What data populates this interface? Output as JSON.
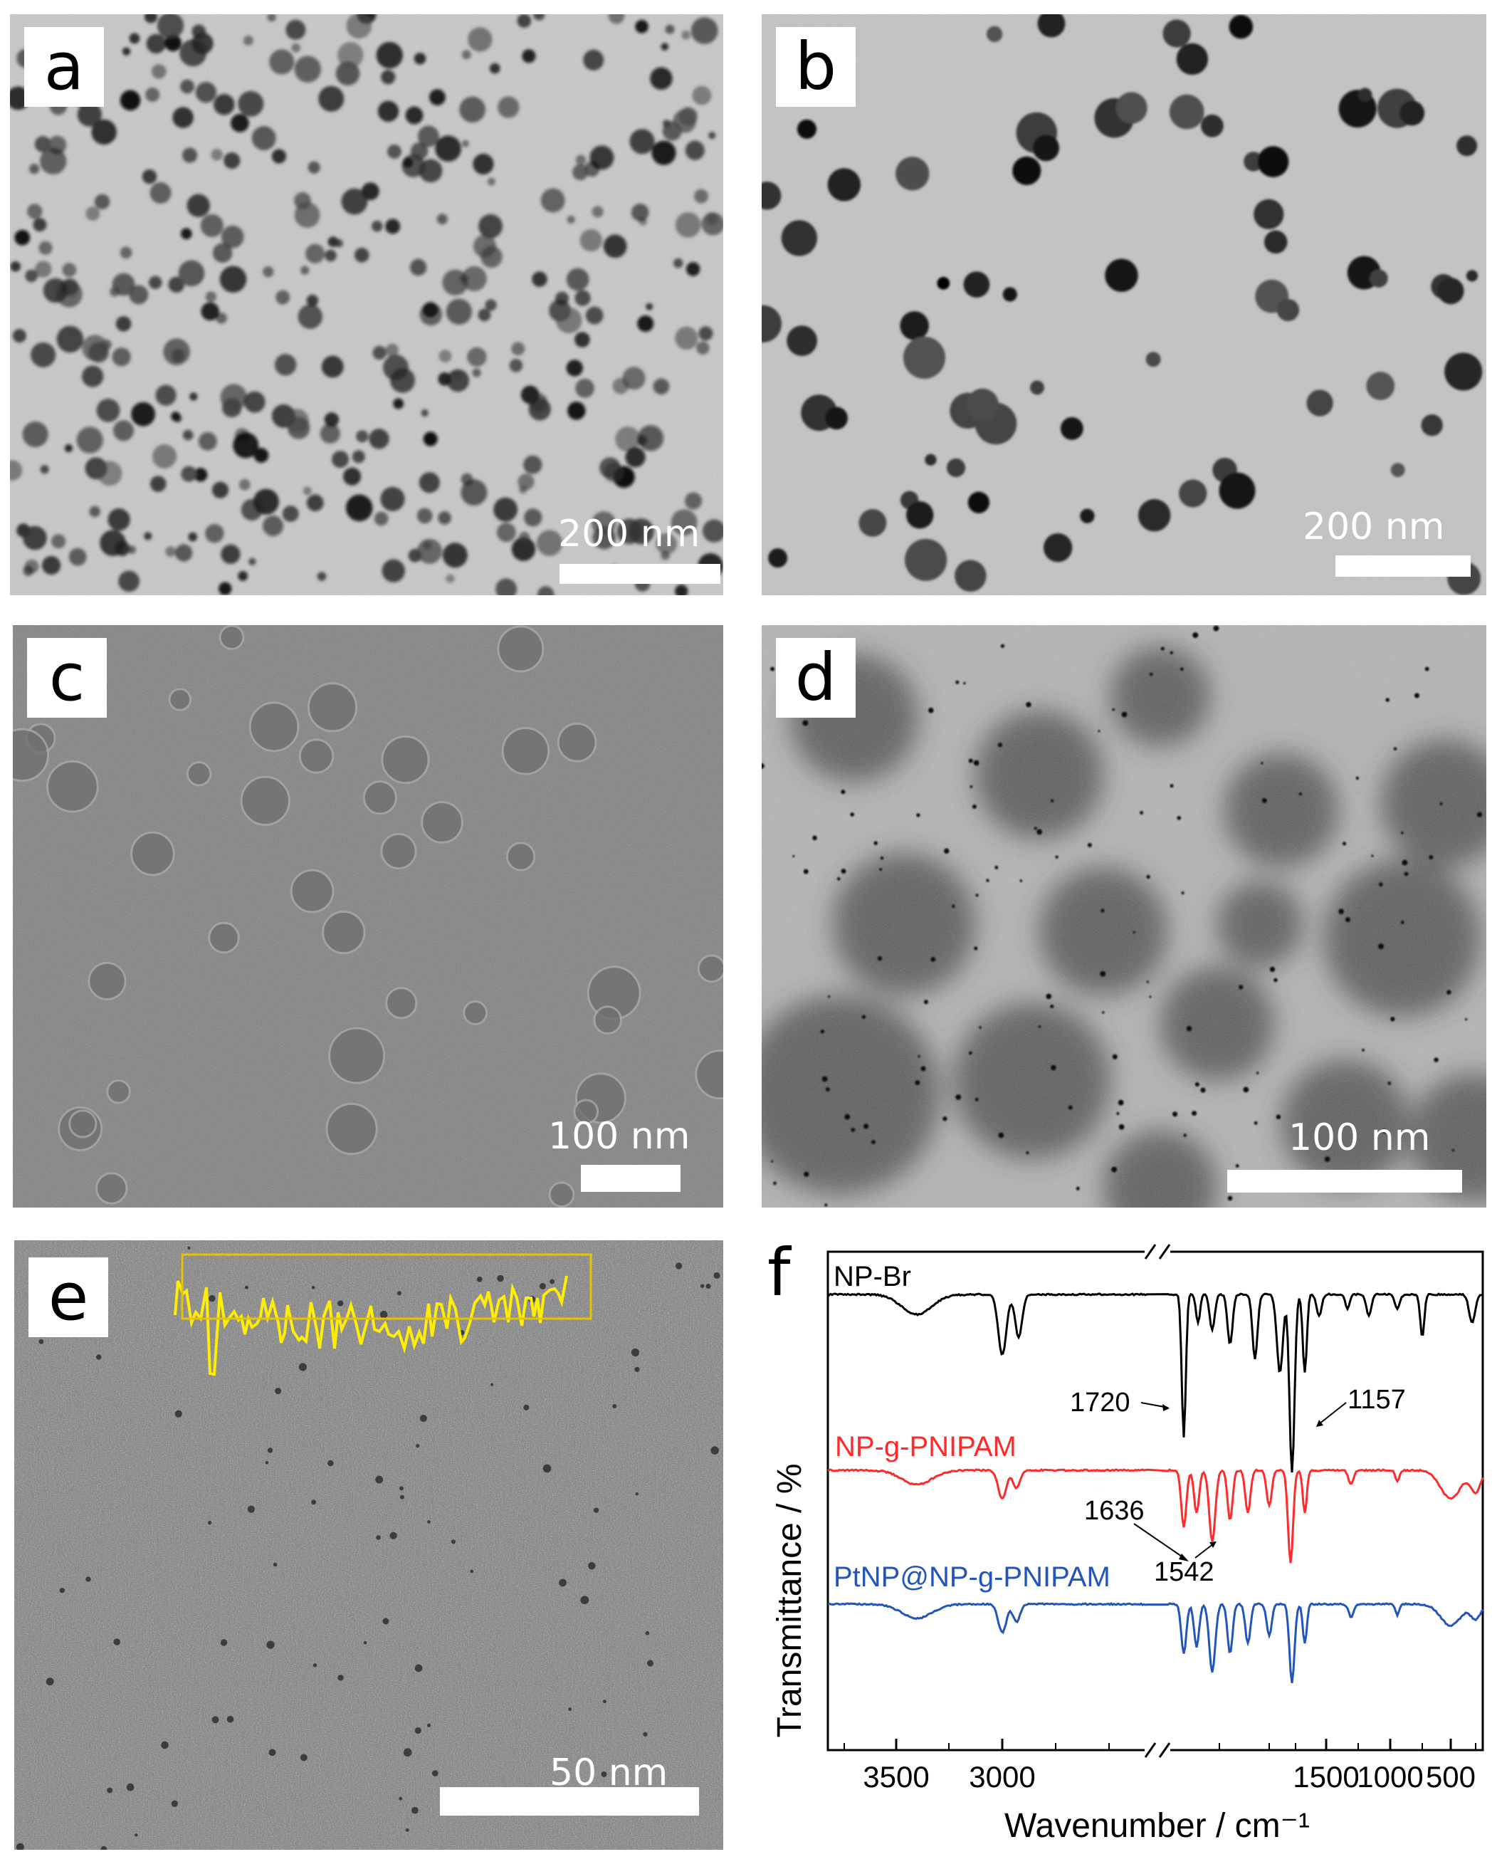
{
  "panels": {
    "a": {
      "label": "a",
      "scale": "200 nm"
    },
    "b": {
      "label": "b",
      "scale": "200 nm"
    },
    "c": {
      "label": "c",
      "scale": "100 nm"
    },
    "d": {
      "label": "d",
      "scale": "100 nm"
    },
    "e": {
      "label": "e",
      "scale": "50 nm"
    },
    "f": {
      "label": "f"
    }
  },
  "chart_data": {
    "type": "line",
    "xlabel": "Wavenumber / cm⁻¹",
    "ylabel": "Transmittance / %",
    "x_ticks": [
      "3500",
      "3000",
      "1500",
      "1000",
      "500"
    ],
    "axis_break": "//",
    "series": [
      {
        "name": "NP-Br",
        "color": "#000000"
      },
      {
        "name": "NP-g-PNIPAM",
        "color": "#ff2a2a"
      },
      {
        "name": "PtNP@NP-g-PNIPAM",
        "color": "#2255bb"
      }
    ],
    "annotations": [
      "1720",
      "1157",
      "1636",
      "1542"
    ]
  }
}
